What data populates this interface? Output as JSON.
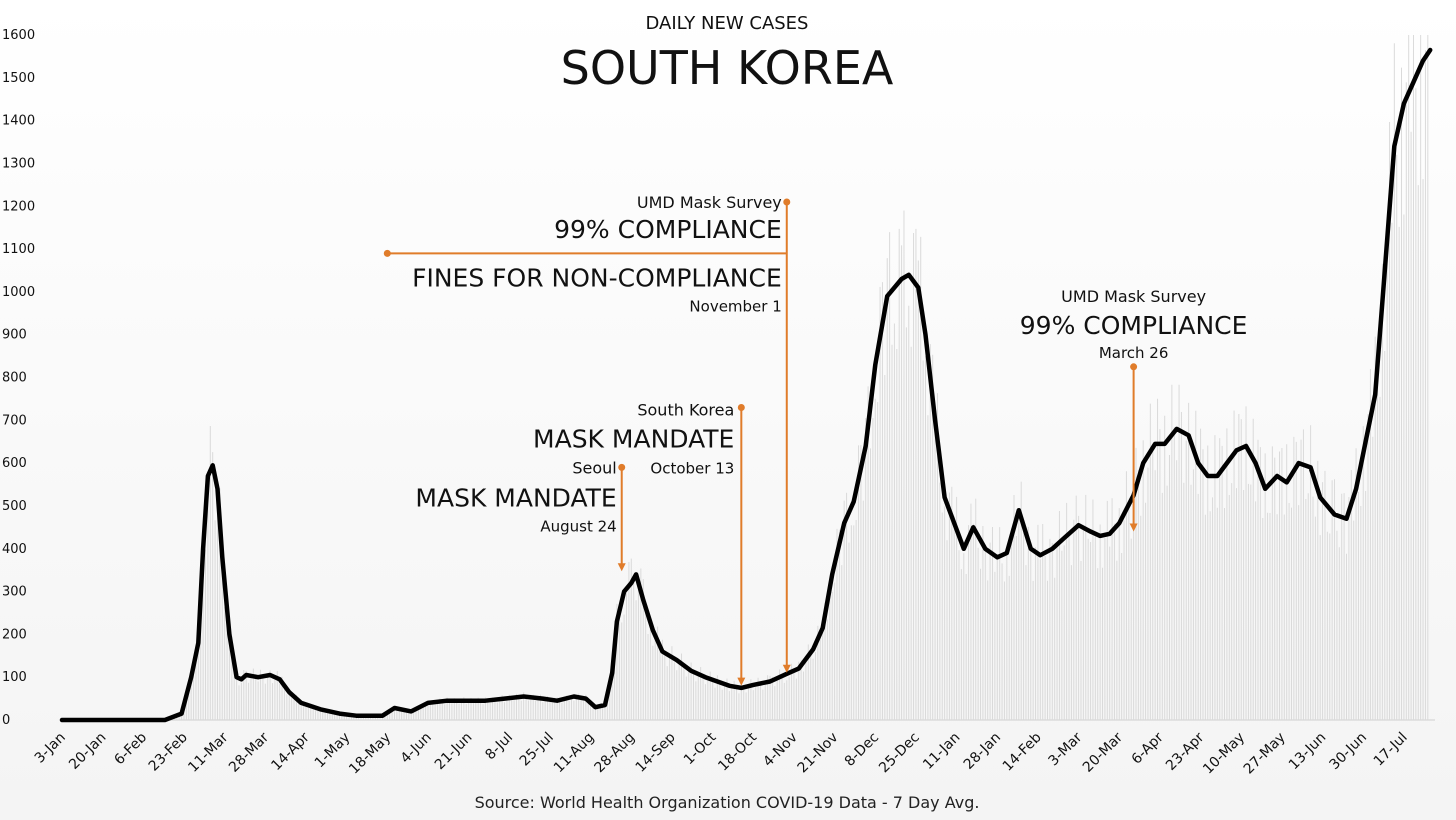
{
  "chart_data": {
    "type": "line",
    "subtitle": "DAILY NEW CASES",
    "title": "SOUTH KOREA",
    "source": "Source: World Health Organization COVID-19 Data - 7 Day Avg.",
    "ylim": [
      0,
      1600
    ],
    "yticks": [
      0,
      100,
      200,
      300,
      400,
      500,
      600,
      700,
      800,
      900,
      1000,
      1100,
      1200,
      1300,
      1400,
      1500,
      1600
    ],
    "xlim": [
      "2020-01-03",
      "2021-07-30"
    ],
    "x_tick_labels": [
      "3-Jan",
      "20-Jan",
      "6-Feb",
      "23-Feb",
      "11-Mar",
      "28-Mar",
      "14-Apr",
      "1-May",
      "18-May",
      "4-Jun",
      "21-Jun",
      "8-Jul",
      "25-Jul",
      "11-Aug",
      "28-Aug",
      "14-Sep",
      "1-Oct",
      "18-Oct",
      "4-Nov",
      "21-Nov",
      "8-Dec",
      "25-Dec",
      "11-Jan",
      "28-Jan",
      "14-Feb",
      "3-Mar",
      "20-Mar",
      "6-Apr",
      "23-Apr",
      "10-May",
      "27-May",
      "13-Jun",
      "30-Jun",
      "17-Jul"
    ],
    "grid": false,
    "series": [
      {
        "color": "#000000",
        "x": [
          "2020-01-03",
          "2020-02-15",
          "2020-02-22",
          "2020-02-26",
          "2020-02-29",
          "2020-03-02",
          "2020-03-04",
          "2020-03-06",
          "2020-03-08",
          "2020-03-10",
          "2020-03-13",
          "2020-03-16",
          "2020-03-18",
          "2020-03-20",
          "2020-03-25",
          "2020-03-30",
          "2020-04-03",
          "2020-04-07",
          "2020-04-12",
          "2020-04-20",
          "2020-04-28",
          "2020-05-05",
          "2020-05-12",
          "2020-05-16",
          "2020-05-21",
          "2020-05-28",
          "2020-06-04",
          "2020-06-12",
          "2020-06-20",
          "2020-06-28",
          "2020-07-06",
          "2020-07-14",
          "2020-07-22",
          "2020-07-28",
          "2020-08-04",
          "2020-08-09",
          "2020-08-13",
          "2020-08-17",
          "2020-08-20",
          "2020-08-22",
          "2020-08-25",
          "2020-08-28",
          "2020-08-30",
          "2020-09-02",
          "2020-09-06",
          "2020-09-10",
          "2020-09-16",
          "2020-09-22",
          "2020-09-28",
          "2020-10-03",
          "2020-10-08",
          "2020-10-13",
          "2020-10-18",
          "2020-10-25",
          "2020-11-01",
          "2020-11-06",
          "2020-11-12",
          "2020-11-16",
          "2020-11-20",
          "2020-11-25",
          "2020-11-29",
          "2020-12-04",
          "2020-12-08",
          "2020-12-13",
          "2020-12-16",
          "2020-12-19",
          "2020-12-22",
          "2020-12-26",
          "2020-12-29",
          "2021-01-02",
          "2021-01-06",
          "2021-01-10",
          "2021-01-14",
          "2021-01-18",
          "2021-01-23",
          "2021-01-28",
          "2021-02-01",
          "2021-02-06",
          "2021-02-11",
          "2021-02-15",
          "2021-02-20",
          "2021-02-25",
          "2021-03-03",
          "2021-03-08",
          "2021-03-12",
          "2021-03-16",
          "2021-03-20",
          "2021-03-26",
          "2021-03-30",
          "2021-04-04",
          "2021-04-08",
          "2021-04-13",
          "2021-04-18",
          "2021-04-22",
          "2021-04-26",
          "2021-04-30",
          "2021-05-04",
          "2021-05-08",
          "2021-05-12",
          "2021-05-16",
          "2021-05-20",
          "2021-05-25",
          "2021-05-29",
          "2021-06-03",
          "2021-06-08",
          "2021-06-12",
          "2021-06-18",
          "2021-06-23",
          "2021-06-27",
          "2021-07-01",
          "2021-07-05",
          "2021-07-09",
          "2021-07-13",
          "2021-07-17",
          "2021-07-21",
          "2021-07-25",
          "2021-07-28"
        ],
        "y": [
          0,
          0,
          15,
          100,
          180,
          400,
          570,
          595,
          540,
          380,
          200,
          100,
          95,
          105,
          100,
          105,
          95,
          65,
          40,
          25,
          15,
          10,
          10,
          10,
          28,
          20,
          40,
          45,
          45,
          45,
          50,
          55,
          50,
          45,
          55,
          50,
          30,
          35,
          110,
          230,
          300,
          320,
          340,
          280,
          210,
          160,
          140,
          115,
          100,
          90,
          80,
          75,
          82,
          90,
          108,
          120,
          165,
          215,
          340,
          460,
          510,
          640,
          830,
          990,
          1010,
          1030,
          1040,
          1010,
          900,
          700,
          520,
          460,
          400,
          450,
          400,
          380,
          390,
          490,
          400,
          385,
          400,
          425,
          455,
          440,
          430,
          435,
          460,
          525,
          600,
          645,
          645,
          680,
          665,
          600,
          570,
          570,
          600,
          630,
          640,
          600,
          540,
          570,
          555,
          600,
          590,
          520,
          480,
          470,
          540,
          650,
          760,
          1050,
          1340,
          1440,
          1490,
          1540,
          1565
        ]
      }
    ],
    "annotations": [
      {
        "label_1": "Seoul",
        "label_2": "MASK MANDATE",
        "label_3": "August 24",
        "date": "2020-08-24",
        "line_from": 590,
        "line_to": 345,
        "color": "#e07c2a"
      },
      {
        "label_1": "South Korea",
        "label_2": "MASK MANDATE",
        "label_3": "October 13",
        "date": "2020-10-13",
        "line_from": 730,
        "line_to": 78,
        "color": "#e07c2a"
      },
      {
        "label_1": "UMD Mask Survey",
        "label_2": "99% COMPLIANCE",
        "label_2b": "FINES FOR NON-COMPLIANCE",
        "label_3": "November 1",
        "date": "2020-11-01",
        "line_from": 1210,
        "line_to": 108,
        "horizontal_from": "2020-05-18",
        "horizontal_value": 1090,
        "color": "#e07c2a"
      },
      {
        "label_1": "UMD Mask Survey",
        "label_2": "99% COMPLIANCE",
        "label_3": "March 26",
        "date": "2021-03-26",
        "line_from": 825,
        "line_to": 438,
        "color": "#e07c2a"
      }
    ]
  }
}
